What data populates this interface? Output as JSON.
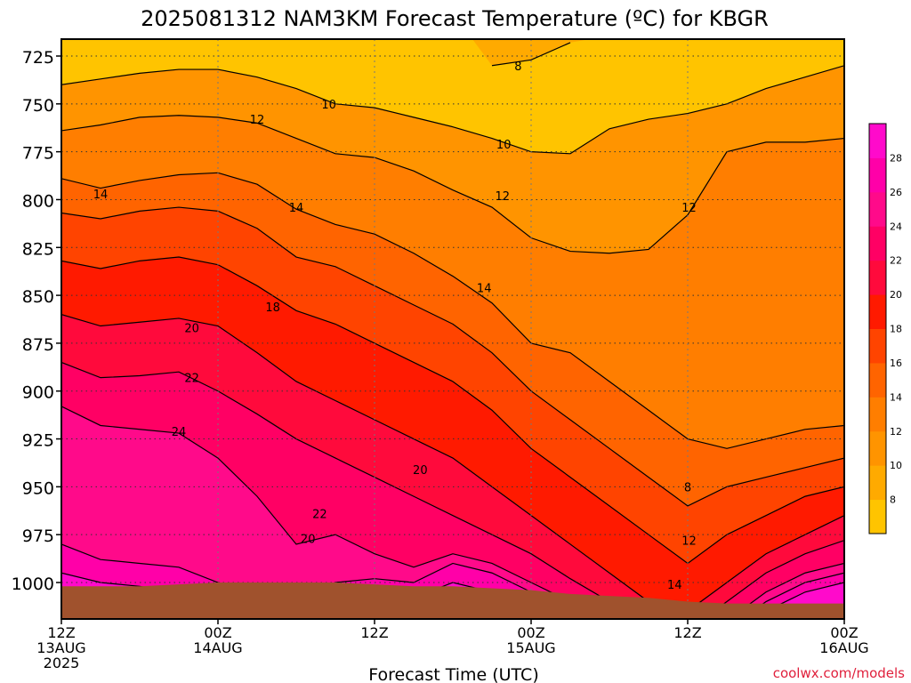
{
  "chart_data": {
    "type": "heatmap",
    "title": "2025081312 NAM3KM Forecast Temperature (ºC) for KBGR",
    "xlabel": "Forecast Time (UTC)",
    "ylabel": "",
    "x_ticks": [
      {
        "hour": 0,
        "lines": [
          "12Z",
          "13AUG",
          "2025"
        ]
      },
      {
        "hour": 12,
        "lines": [
          "00Z",
          "14AUG"
        ]
      },
      {
        "hour": 24,
        "lines": [
          "12Z"
        ]
      },
      {
        "hour": 36,
        "lines": [
          "00Z",
          "15AUG"
        ]
      },
      {
        "hour": 48,
        "lines": [
          "12Z"
        ]
      },
      {
        "hour": 60,
        "lines": [
          "00Z",
          "16AUG"
        ]
      }
    ],
    "xlim": [
      0,
      60
    ],
    "y_ticks": [
      725,
      750,
      775,
      800,
      825,
      850,
      875,
      900,
      925,
      950,
      975,
      1000
    ],
    "ylim": [
      1020,
      713
    ],
    "grid": true,
    "colorbar": {
      "labels": [
        28,
        26,
        24,
        22,
        20,
        18,
        16,
        14,
        12,
        10,
        8
      ],
      "levels": [
        {
          "from": 6,
          "to": 8,
          "color": "#FFC400"
        },
        {
          "from": 8,
          "to": 10,
          "color": "#FFAA00"
        },
        {
          "from": 10,
          "to": 12,
          "color": "#FF9400"
        },
        {
          "from": 12,
          "to": 14,
          "color": "#FF7E00"
        },
        {
          "from": 14,
          "to": 16,
          "color": "#FF6400"
        },
        {
          "from": 16,
          "to": 18,
          "color": "#FF4400"
        },
        {
          "from": 18,
          "to": 20,
          "color": "#FF1A00"
        },
        {
          "from": 20,
          "to": 22,
          "color": "#FF0A3C"
        },
        {
          "from": 22,
          "to": 24,
          "color": "#FF0064"
        },
        {
          "from": 24,
          "to": 26,
          "color": "#FF0A8A"
        },
        {
          "from": 26,
          "to": 28,
          "color": "#FF00A8"
        },
        {
          "from": 28,
          "to": 30,
          "color": "#FF0ACB"
        }
      ]
    },
    "contour_labels": [
      {
        "text": "8",
        "hour": 35.0,
        "pres": 730
      },
      {
        "text": "10",
        "hour": 20.5,
        "pres": 750
      },
      {
        "text": "10",
        "hour": 33.9,
        "pres": 771
      },
      {
        "text": "12",
        "hour": 15.0,
        "pres": 758
      },
      {
        "text": "12",
        "hour": 33.8,
        "pres": 798
      },
      {
        "text": "12",
        "hour": 48.1,
        "pres": 804
      },
      {
        "text": "12",
        "hour": 48.1,
        "pres": 978
      },
      {
        "text": "14",
        "hour": 3.0,
        "pres": 797
      },
      {
        "text": "14",
        "hour": 18.0,
        "pres": 804
      },
      {
        "text": "14",
        "hour": 32.4,
        "pres": 846
      },
      {
        "text": "14",
        "hour": 47.0,
        "pres": 1001
      },
      {
        "text": "18",
        "hour": 16.2,
        "pres": 856
      },
      {
        "text": "20",
        "hour": 10.0,
        "pres": 867
      },
      {
        "text": "20",
        "hour": 27.5,
        "pres": 941
      },
      {
        "text": "20",
        "hour": 18.9,
        "pres": 977
      },
      {
        "text": "22",
        "hour": 10.0,
        "pres": 893
      },
      {
        "text": "22",
        "hour": 19.8,
        "pres": 964
      },
      {
        "text": "24",
        "hour": 9.0,
        "pres": 921
      },
      {
        "text": "8",
        "hour": 48.0,
        "pres": 950
      }
    ]
  },
  "credit": "coolwx.com/models",
  "colors": {
    "terrain": "#A0522D",
    "credit": "#E0203C"
  }
}
